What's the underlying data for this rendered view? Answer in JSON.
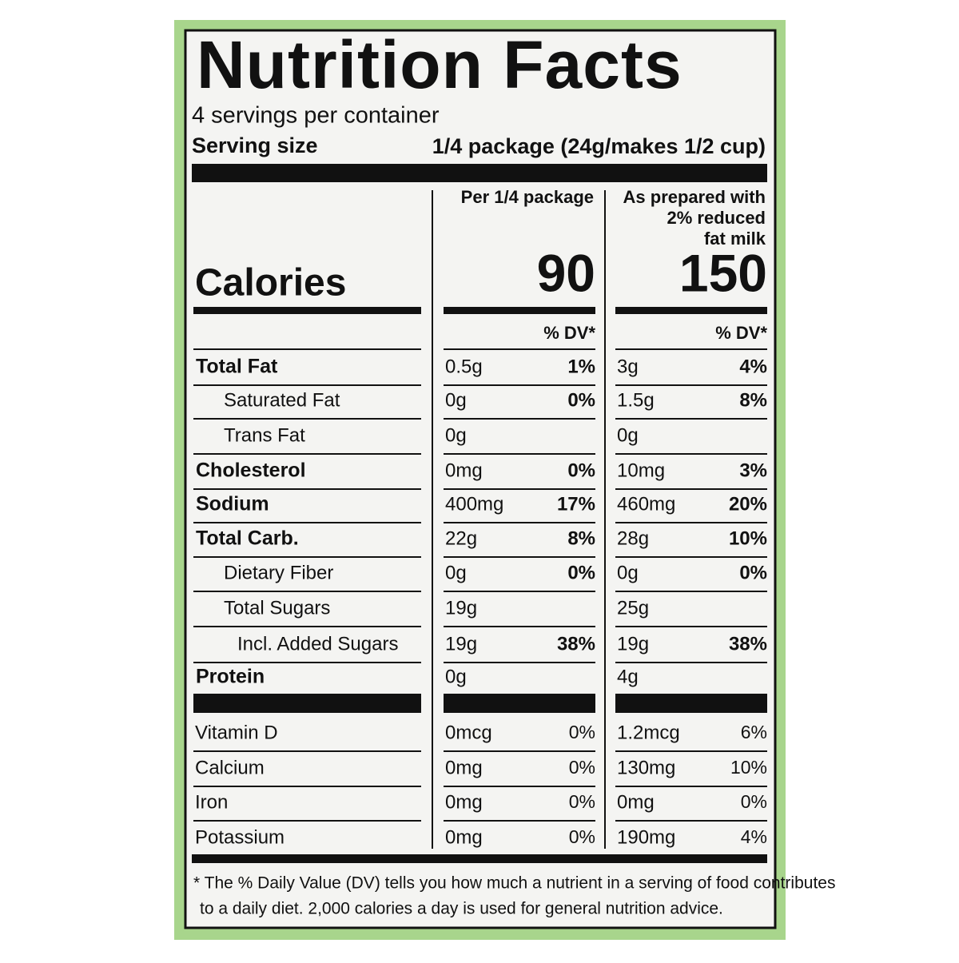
{
  "title": "Nutrition Facts",
  "servings": "4 servings per container",
  "serving_size_label": "Serving size",
  "serving_size": "1/4 package (24g/makes 1/2 cup)",
  "columns": [
    [
      "Per 1/4 package"
    ],
    [
      "As prepared with",
      "2% reduced",
      "fat milk"
    ]
  ],
  "calories_label": "Calories",
  "calories": [
    "90",
    "150"
  ],
  "dv_header": [
    "% DV*",
    "% DV*"
  ],
  "nutrients": [
    {
      "name": "Total Fat",
      "bold": true,
      "indent": 0,
      "amounts": [
        "0.5g",
        "3g"
      ],
      "dv": [
        "1%",
        "4%"
      ]
    },
    {
      "name": "Saturated Fat",
      "bold": false,
      "indent": 1,
      "amounts": [
        "0g",
        "1.5g"
      ],
      "dv": [
        "0%",
        "8%"
      ]
    },
    {
      "name": "Trans Fat",
      "bold": false,
      "indent": 1,
      "amounts": [
        "0g",
        "0g"
      ],
      "dv": [
        null,
        null
      ]
    },
    {
      "name": "Cholesterol",
      "bold": true,
      "indent": 0,
      "amounts": [
        "0mg",
        "10mg"
      ],
      "dv": [
        "0%",
        "3%"
      ]
    },
    {
      "name": "Sodium",
      "bold": true,
      "indent": 0,
      "amounts": [
        "400mg",
        "460mg"
      ],
      "dv": [
        "17%",
        "20%"
      ]
    },
    {
      "name": "Total Carb.",
      "bold": true,
      "indent": 0,
      "amounts": [
        "22g",
        "28g"
      ],
      "dv": [
        "8%",
        "10%"
      ]
    },
    {
      "name": "Dietary Fiber",
      "bold": false,
      "indent": 1,
      "amounts": [
        "0g",
        "0g"
      ],
      "dv": [
        "0%",
        "0%"
      ]
    },
    {
      "name": "Total Sugars",
      "bold": false,
      "indent": 1,
      "amounts": [
        "19g",
        "25g"
      ],
      "dv": [
        null,
        null
      ]
    },
    {
      "name": "Incl. Added Sugars",
      "bold": false,
      "indent": 2,
      "amounts": [
        "19g",
        "19g"
      ],
      "dv": [
        "38%",
        "38%"
      ]
    },
    {
      "name": "Protein",
      "bold": true,
      "indent": 0,
      "amounts": [
        "0g",
        "4g"
      ],
      "dv": [
        null,
        null
      ]
    }
  ],
  "vitamins": [
    {
      "name": "Vitamin D",
      "amounts": [
        "0mcg",
        "1.2mcg"
      ],
      "dv": [
        "0%",
        "6%"
      ]
    },
    {
      "name": "Calcium",
      "amounts": [
        "0mg",
        "130mg"
      ],
      "dv": [
        "0%",
        "10%"
      ]
    },
    {
      "name": "Iron",
      "amounts": [
        "0mg",
        "0mg"
      ],
      "dv": [
        "0%",
        "0%"
      ]
    },
    {
      "name": "Potassium",
      "amounts": [
        "0mg",
        "190mg"
      ],
      "dv": [
        "0%",
        "4%"
      ]
    }
  ],
  "footnote": [
    "* The % Daily Value (DV) tells you how much a nutrient in a serving of food contributes",
    "to a daily diet. 2,000 calories a day is used for general nutrition advice."
  ]
}
